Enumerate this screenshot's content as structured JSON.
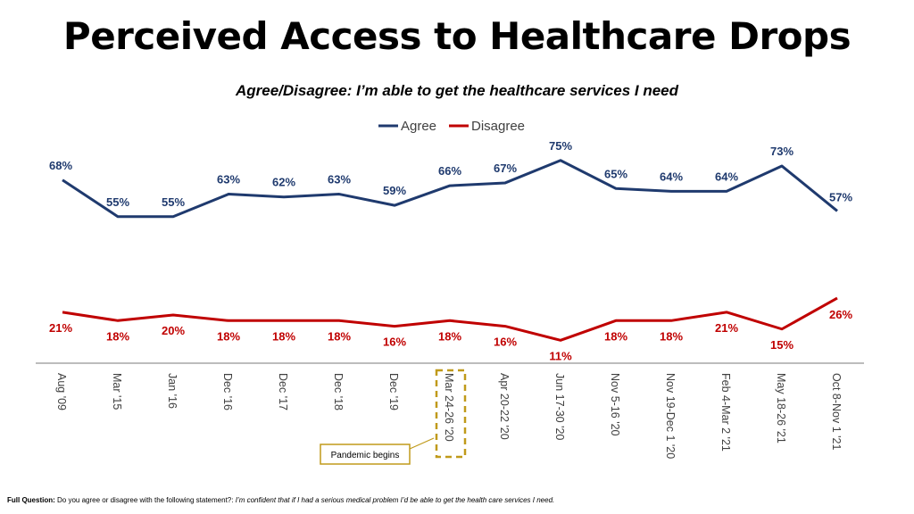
{
  "chart_data": {
    "type": "line",
    "title": "Perceived Access to Healthcare Drops",
    "subtitle": "Agree/Disagree: I’m able to get the healthcare services I need",
    "categories": [
      "Aug '09",
      "Mar '15",
      "Jan '16",
      "Dec '16",
      "Dec '17",
      "Dec '18",
      "Dec '19",
      "Mar 24-26 '20",
      "Apr 20-22 '20",
      "Jun 17-30 '20",
      "Nov 5-16 '20",
      "Nov 19-Dec 1 '20",
      "Feb 4-Mar 2 '21",
      "May 18-26 '21",
      "Oct 8-Nov 1 '21"
    ],
    "series": [
      {
        "name": "Agree",
        "color": "#1f3a6e",
        "values": [
          68,
          55,
          55,
          63,
          62,
          63,
          59,
          66,
          67,
          75,
          65,
          64,
          64,
          73,
          57
        ]
      },
      {
        "name": "Disagree",
        "color": "#c00000",
        "values": [
          21,
          18,
          20,
          18,
          18,
          18,
          16,
          18,
          16,
          11,
          18,
          18,
          21,
          15,
          26
        ]
      }
    ],
    "legend_placement": "top",
    "grid": false,
    "highlighted_category": "Mar 24-26 '20",
    "highlight_color": "#c09a1a",
    "annotation": "Pandemic begins"
  },
  "footnote": {
    "label": "Full Question:",
    "question": "Do you agree or disagree with the following statement?:",
    "statement": "I’m confident that if I had a serious medical problem I’d be able to get the health care services  I need."
  }
}
